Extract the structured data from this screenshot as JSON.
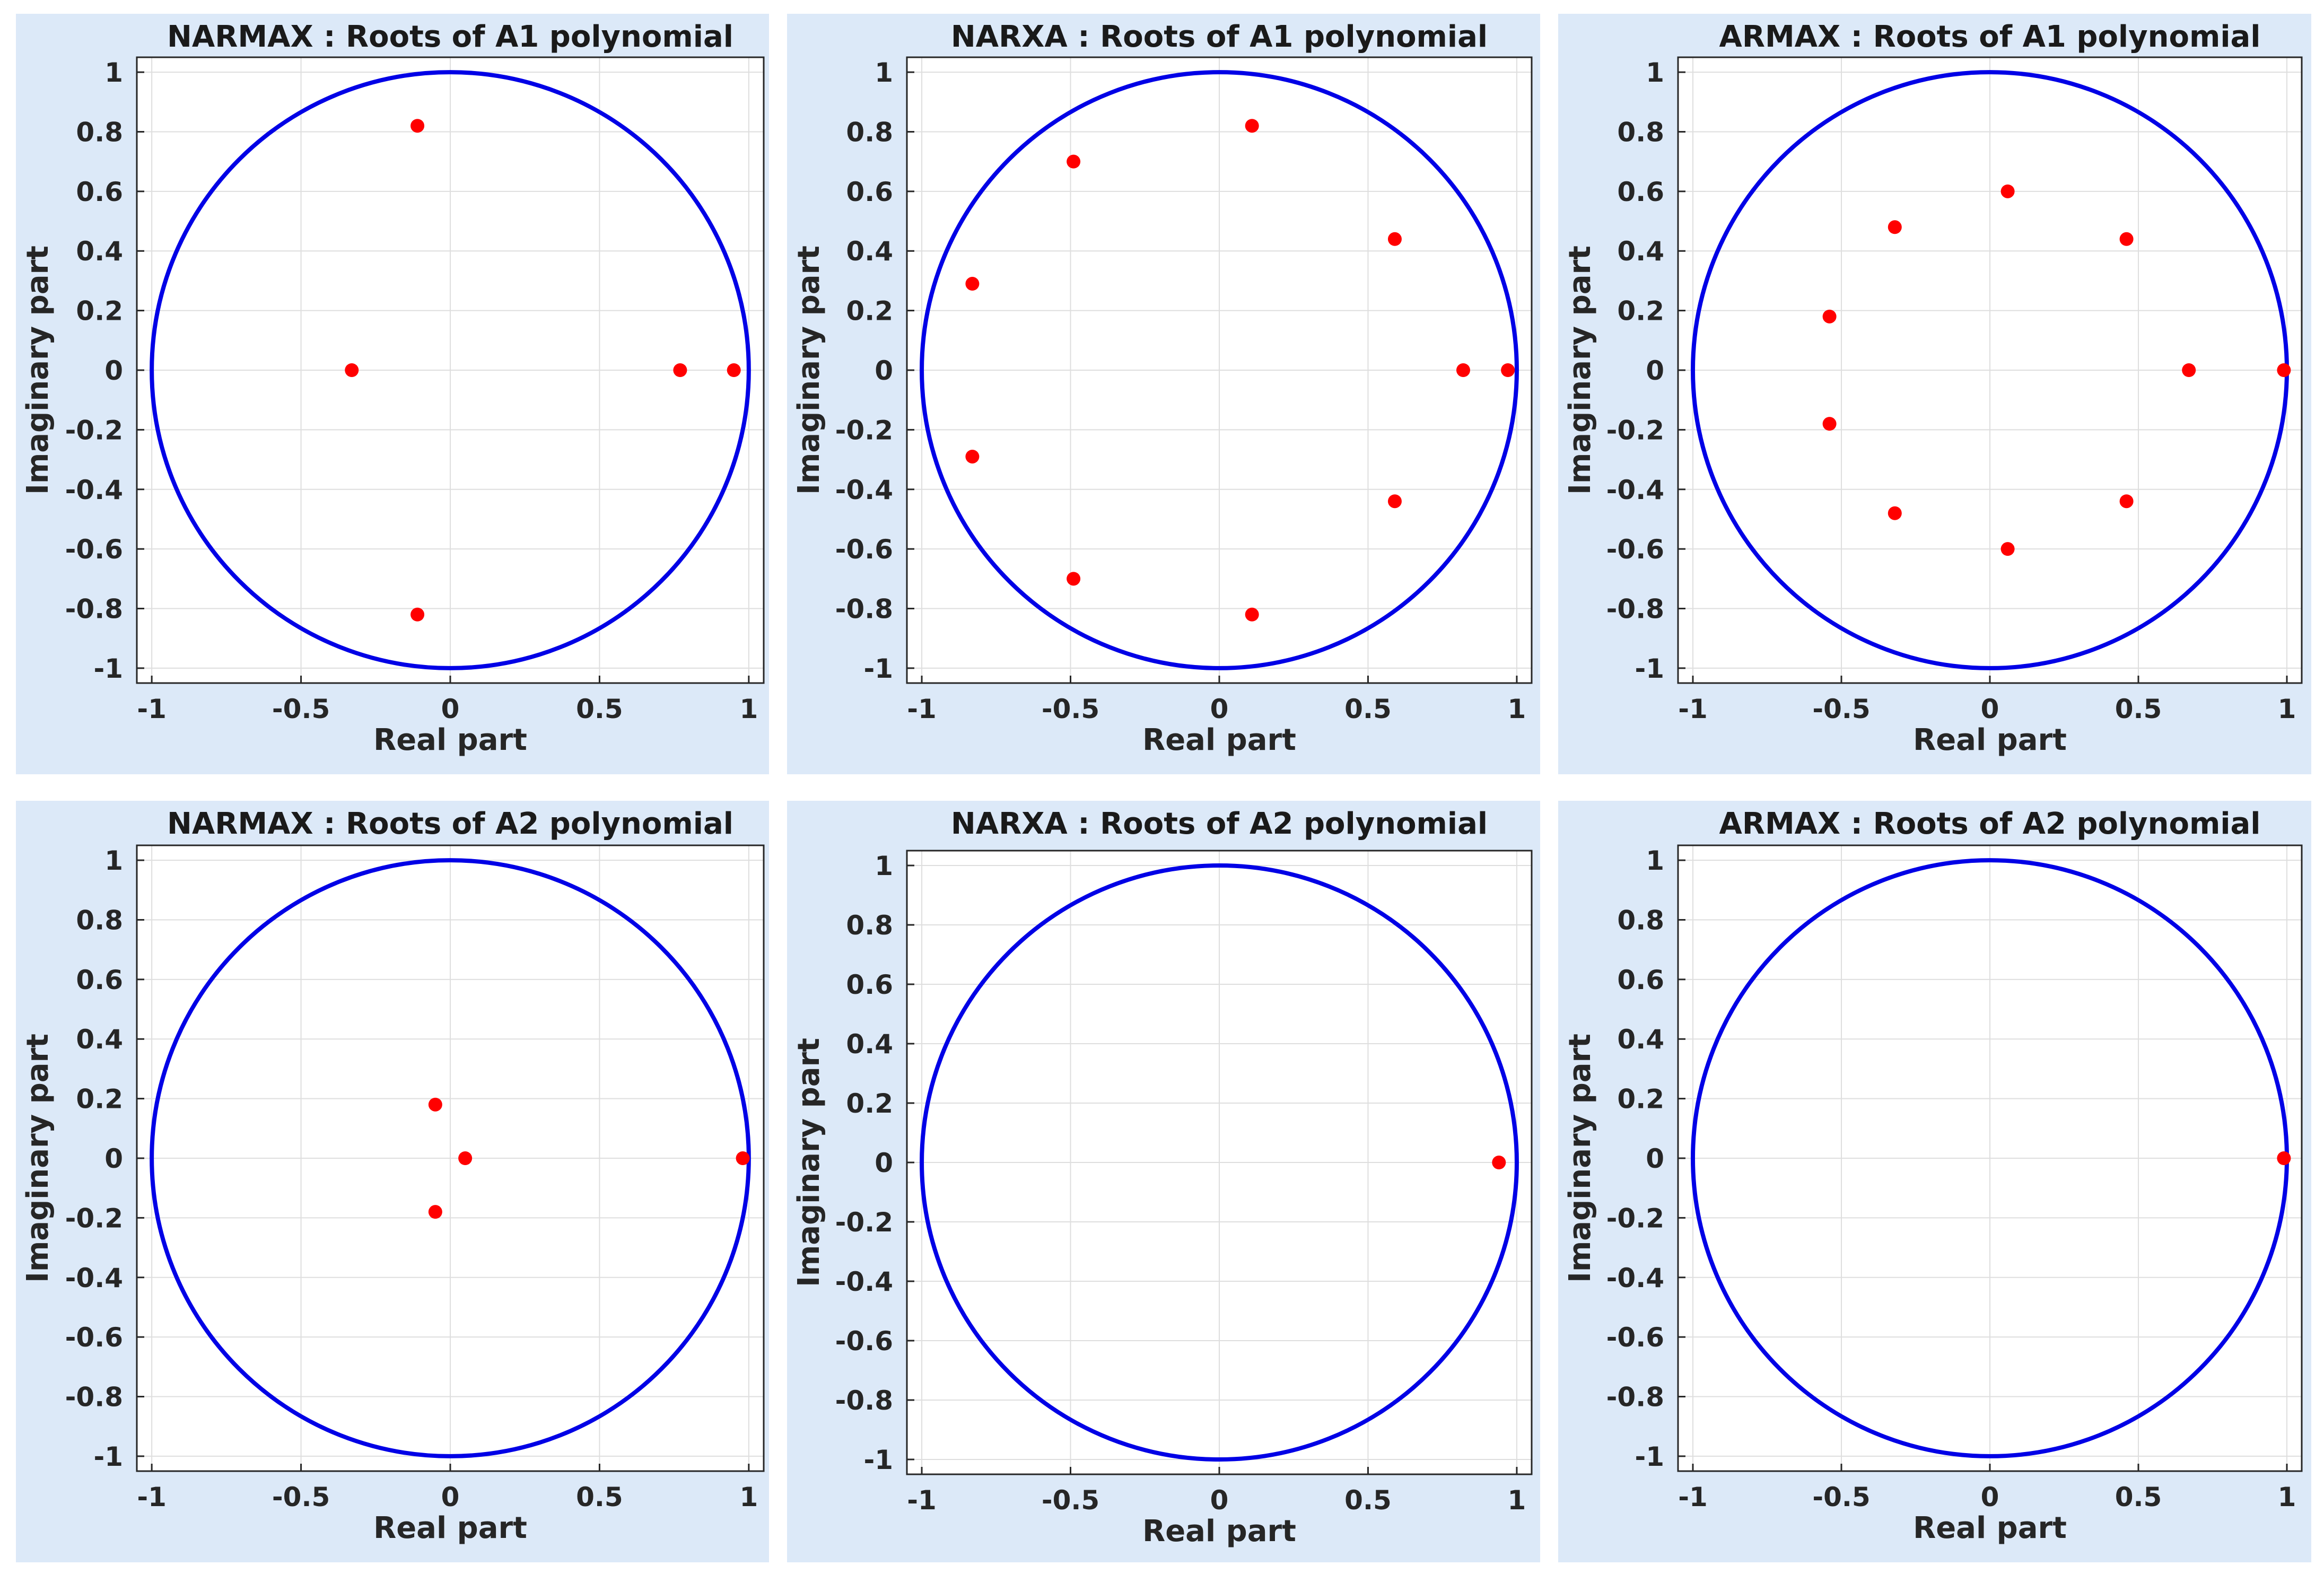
{
  "figure": {
    "colors": {
      "panel_background": "#dce9f8",
      "axes_background": "#ffffff",
      "grid": "#dedede",
      "unit_circle": "#0000e6",
      "roots": "#ff0000"
    }
  },
  "chart_data": [
    {
      "type": "scatter",
      "title": "NARMAX : Roots of A1 polynomial",
      "xlabel": "Real part",
      "ylabel": "Imaginary part",
      "xlim": [
        -1.05,
        1.05
      ],
      "ylim": [
        -1.05,
        1.05
      ],
      "xticks": [
        -1,
        -0.5,
        0,
        0.5,
        1
      ],
      "yticks": [
        -1,
        -0.8,
        -0.6,
        -0.4,
        -0.2,
        0,
        0.2,
        0.4,
        0.6,
        0.8,
        1
      ],
      "grid": true,
      "unit_circle": true,
      "series": [
        {
          "name": "roots",
          "points": [
            [
              -0.11,
              0.82
            ],
            [
              -0.11,
              -0.82
            ],
            [
              -0.33,
              0.0
            ],
            [
              0.77,
              0.0
            ],
            [
              0.95,
              0.0
            ]
          ]
        }
      ]
    },
    {
      "type": "scatter",
      "title": "NARXA : Roots of A1 polynomial",
      "xlabel": "Real part",
      "ylabel": "Imaginary part",
      "xlim": [
        -1.05,
        1.05
      ],
      "ylim": [
        -1.05,
        1.05
      ],
      "xticks": [
        -1,
        -0.5,
        0,
        0.5,
        1
      ],
      "yticks": [
        -1,
        -0.8,
        -0.6,
        -0.4,
        -0.2,
        0,
        0.2,
        0.4,
        0.6,
        0.8,
        1
      ],
      "grid": true,
      "unit_circle": true,
      "series": [
        {
          "name": "roots",
          "points": [
            [
              0.11,
              0.82
            ],
            [
              -0.49,
              0.7
            ],
            [
              0.59,
              0.44
            ],
            [
              -0.83,
              0.29
            ],
            [
              0.82,
              0.0
            ],
            [
              0.97,
              0.0
            ],
            [
              -0.83,
              -0.29
            ],
            [
              0.59,
              -0.44
            ],
            [
              -0.49,
              -0.7
            ],
            [
              0.11,
              -0.82
            ]
          ]
        }
      ]
    },
    {
      "type": "scatter",
      "title": "ARMAX : Roots of A1 polynomial",
      "xlabel": "Real part",
      "ylabel": "Imaginary part",
      "xlim": [
        -1.05,
        1.05
      ],
      "ylim": [
        -1.05,
        1.05
      ],
      "xticks": [
        -1,
        -0.5,
        0,
        0.5,
        1
      ],
      "yticks": [
        -1,
        -0.8,
        -0.6,
        -0.4,
        -0.2,
        0,
        0.2,
        0.4,
        0.6,
        0.8,
        1
      ],
      "grid": true,
      "unit_circle": true,
      "series": [
        {
          "name": "roots",
          "points": [
            [
              0.06,
              0.6
            ],
            [
              -0.32,
              0.48
            ],
            [
              0.46,
              0.44
            ],
            [
              -0.54,
              0.18
            ],
            [
              0.67,
              0.0
            ],
            [
              0.99,
              0.0
            ],
            [
              -0.54,
              -0.18
            ],
            [
              0.46,
              -0.44
            ],
            [
              -0.32,
              -0.48
            ],
            [
              0.06,
              -0.6
            ]
          ]
        }
      ]
    },
    {
      "type": "scatter",
      "title": "NARMAX : Roots of A2 polynomial",
      "xlabel": "Real part",
      "ylabel": "Imaginary part",
      "xlim": [
        -1.05,
        1.05
      ],
      "ylim": [
        -1.05,
        1.05
      ],
      "xticks": [
        -1,
        -0.5,
        0,
        0.5,
        1
      ],
      "yticks": [
        -1,
        -0.8,
        -0.6,
        -0.4,
        -0.2,
        0,
        0.2,
        0.4,
        0.6,
        0.8,
        1
      ],
      "grid": true,
      "unit_circle": true,
      "series": [
        {
          "name": "roots",
          "points": [
            [
              -0.05,
              0.18
            ],
            [
              -0.05,
              -0.18
            ],
            [
              0.05,
              0.0
            ],
            [
              0.98,
              0.0
            ]
          ]
        }
      ]
    },
    {
      "type": "scatter",
      "title": "NARXA : Roots of A2 polynomial",
      "xlabel": "Real part",
      "ylabel": "Imaginary part",
      "xlim": [
        -1.05,
        1.05
      ],
      "ylim": [
        -1.05,
        1.05
      ],
      "xticks": [
        -1,
        -0.5,
        0,
        0.5,
        1
      ],
      "yticks": [
        -1,
        -0.8,
        -0.6,
        -0.4,
        -0.2,
        0,
        0.2,
        0.4,
        0.6,
        0.8,
        1
      ],
      "grid": true,
      "unit_circle": true,
      "series": [
        {
          "name": "roots",
          "points": [
            [
              0.94,
              0.0
            ]
          ]
        }
      ]
    },
    {
      "type": "scatter",
      "title": "ARMAX : Roots of A2 polynomial",
      "xlabel": "Real part",
      "ylabel": "Imaginary part",
      "xlim": [
        -1.05,
        1.05
      ],
      "ylim": [
        -1.05,
        1.05
      ],
      "xticks": [
        -1,
        -0.5,
        0,
        0.5,
        1
      ],
      "yticks": [
        -1,
        -0.8,
        -0.6,
        -0.4,
        -0.2,
        0,
        0.2,
        0.4,
        0.6,
        0.8,
        1
      ],
      "grid": true,
      "unit_circle": true,
      "series": [
        {
          "name": "roots",
          "points": [
            [
              0.99,
              0.0
            ]
          ]
        }
      ]
    }
  ]
}
